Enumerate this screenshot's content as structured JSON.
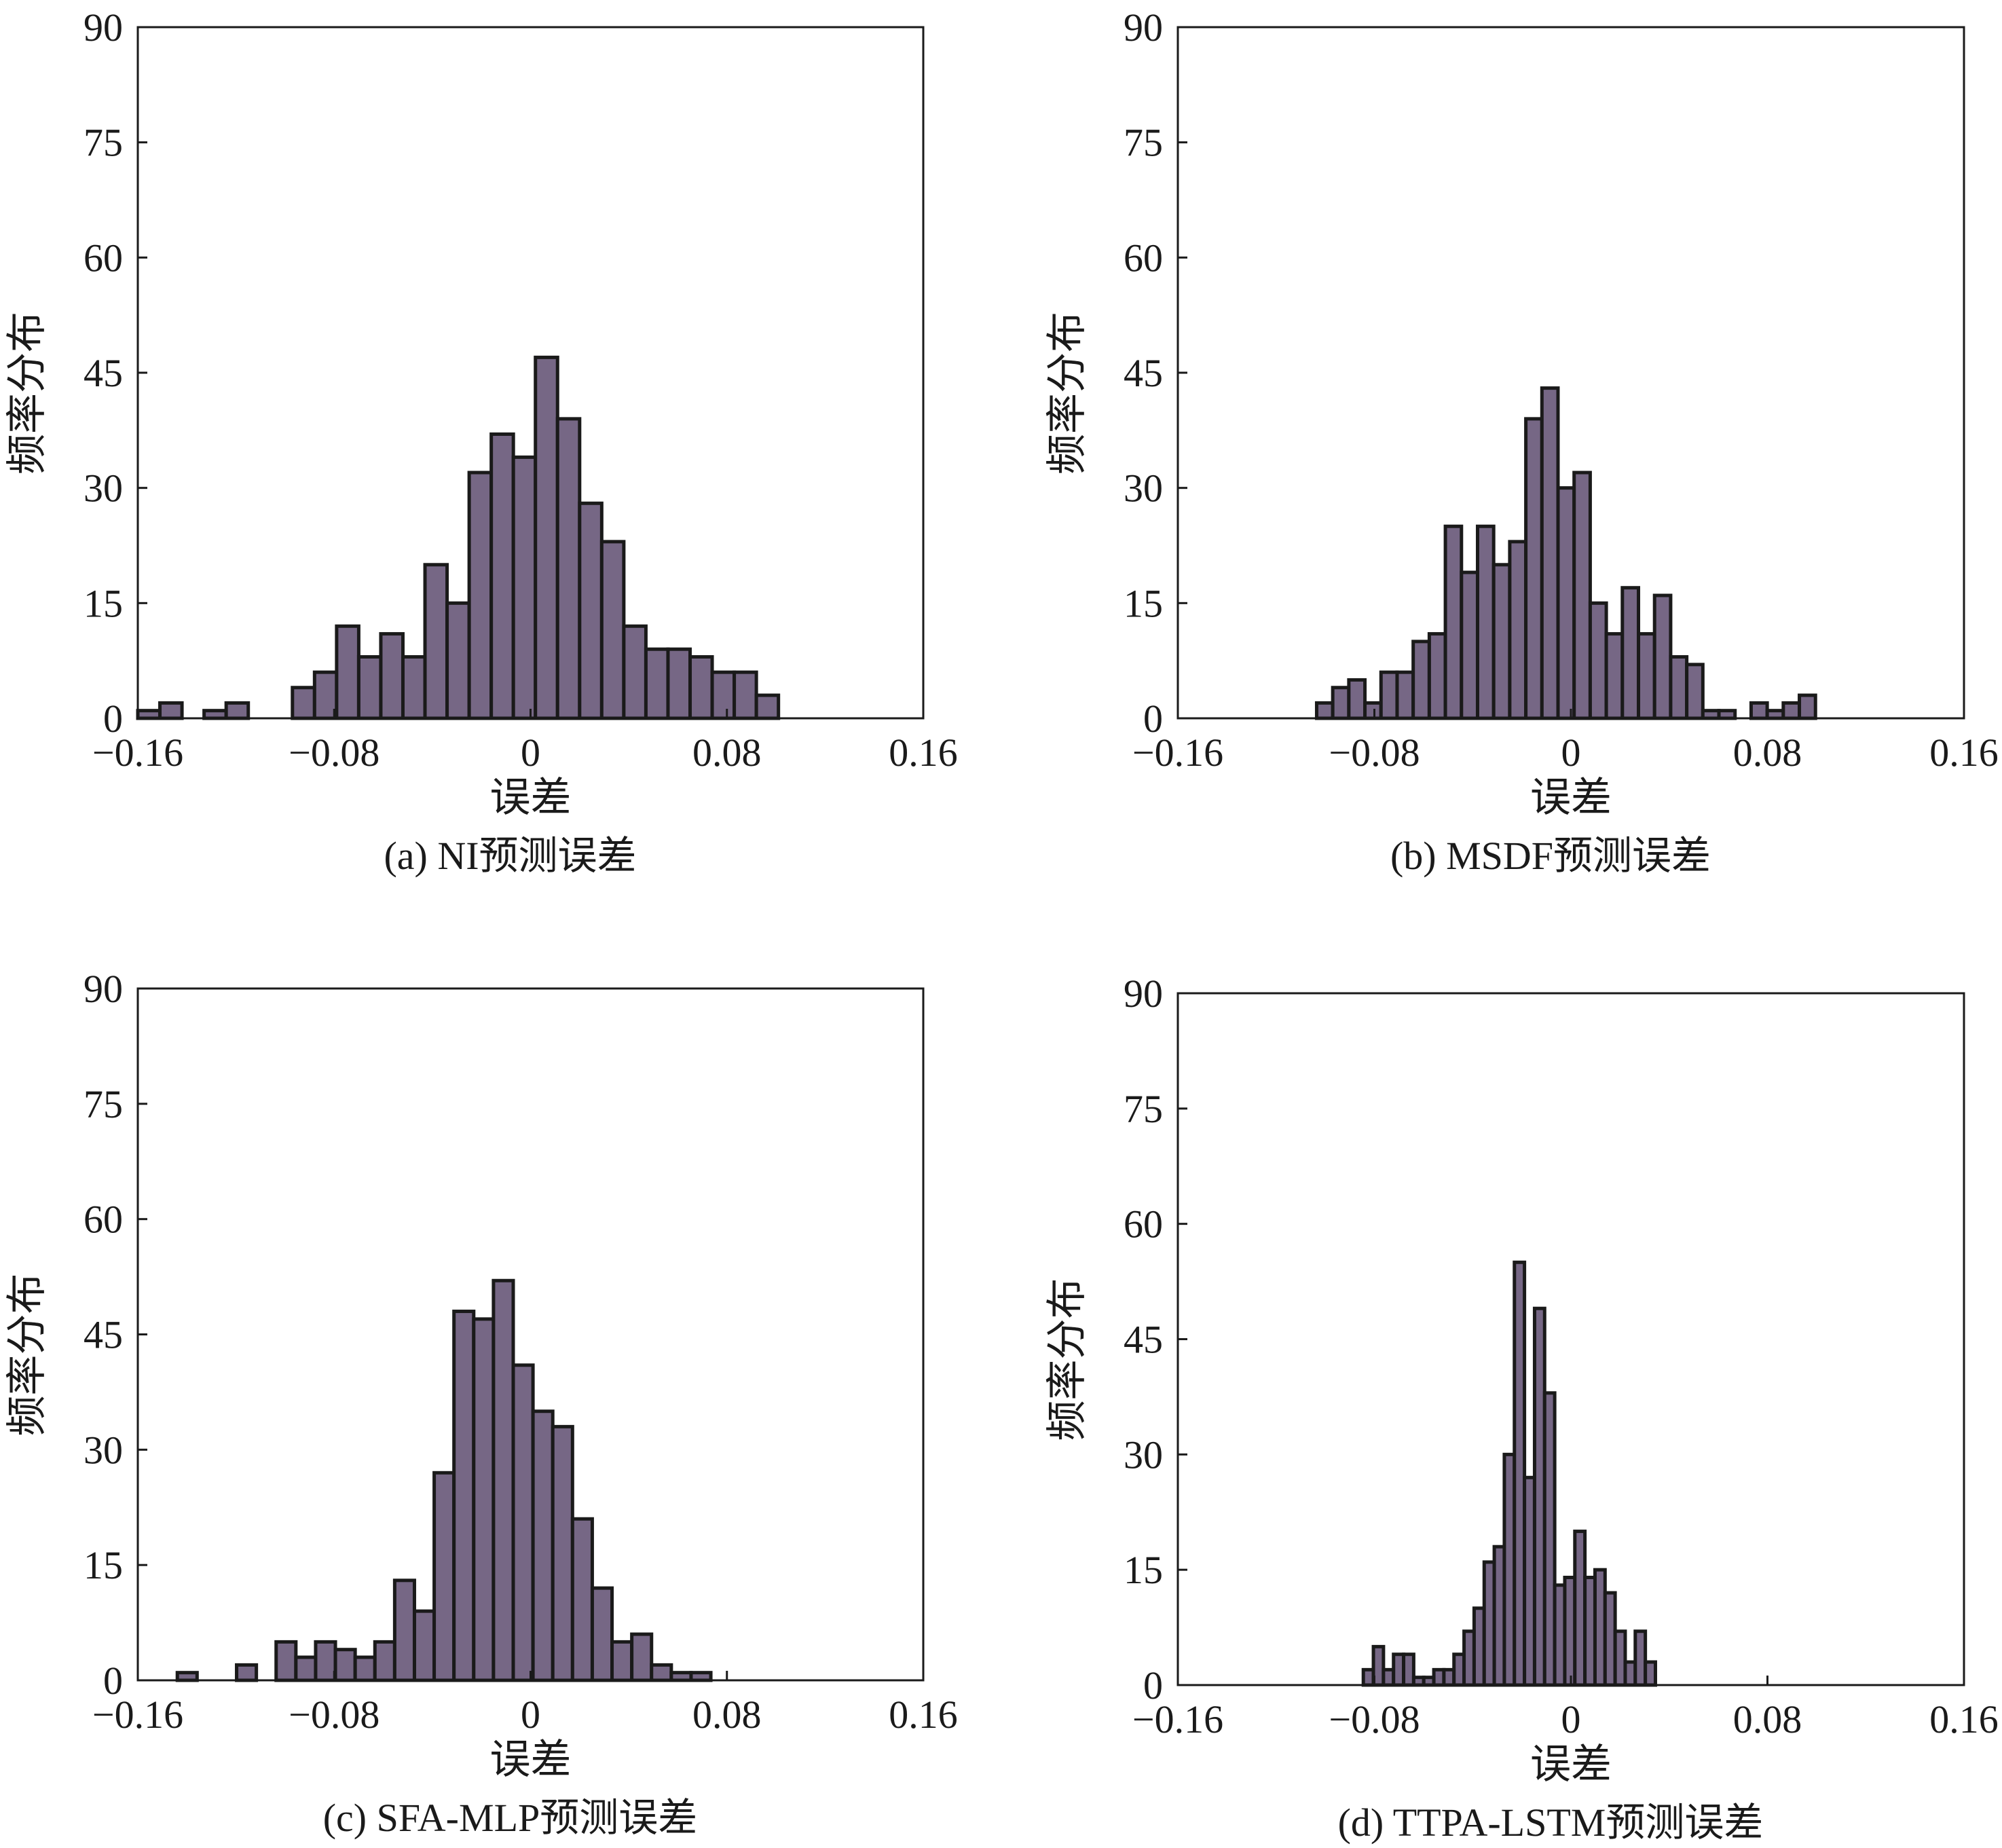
{
  "colors": {
    "bar_fill": "#766785",
    "bar_edge": "#1a1a1a"
  },
  "chart_data": [
    {
      "type": "bar",
      "caption": "(a)  NI预测误差",
      "xlabel": "误差",
      "ylabel": "频率分布",
      "xlim": [
        -0.16,
        0.16
      ],
      "ylim": [
        0,
        90
      ],
      "xticks": [
        "−0.16",
        "−0.08",
        "0",
        "0.08",
        "0.16"
      ],
      "yticks": [
        "0",
        "15",
        "30",
        "45",
        "60",
        "75",
        "90"
      ],
      "bin_start": -0.16,
      "bin_width": 0.009,
      "values": [
        1,
        2,
        0,
        1,
        2,
        0,
        0,
        4,
        6,
        12,
        8,
        11,
        8,
        20,
        15,
        32,
        37,
        34,
        47,
        39,
        28,
        23,
        12,
        9,
        9,
        8,
        6,
        6,
        3
      ]
    },
    {
      "type": "bar",
      "caption": "(b) MSDF预测误差",
      "xlabel": "误差",
      "ylabel": "频率分布",
      "xlim": [
        -0.16,
        0.16
      ],
      "ylim": [
        0,
        90
      ],
      "xticks": [
        "−0.16",
        "−0.08",
        "0",
        "0.08",
        "0.16"
      ],
      "yticks": [
        "0",
        "15",
        "30",
        "45",
        "60",
        "75",
        "90"
      ],
      "bin_start": -0.1035,
      "bin_width": 0.00655,
      "values": [
        2,
        4,
        5,
        2,
        6,
        6,
        10,
        11,
        25,
        19,
        25,
        20,
        23,
        39,
        43,
        30,
        32,
        15,
        11,
        17,
        11,
        16,
        8,
        7,
        1,
        1,
        0,
        2,
        1,
        2,
        3
      ]
    },
    {
      "type": "bar",
      "caption": "(c) SFA-MLP预测误差",
      "xlabel": "误差",
      "ylabel": "频率分布",
      "xlim": [
        -0.16,
        0.16
      ],
      "ylim": [
        0,
        90
      ],
      "xticks": [
        "−0.16",
        "−0.08",
        "0",
        "0.08",
        "0.16"
      ],
      "yticks": [
        "0",
        "15",
        "30",
        "45",
        "60",
        "75",
        "90"
      ],
      "bin_start": -0.16,
      "bin_width": 0.00805,
      "values": [
        0,
        0,
        1,
        0,
        0,
        2,
        0,
        5,
        3,
        5,
        4,
        3,
        5,
        13,
        9,
        27,
        48,
        47,
        52,
        41,
        35,
        33,
        21,
        12,
        5,
        6,
        2,
        1,
        1
      ]
    },
    {
      "type": "bar",
      "caption": "(d) TTPA-LSTM预测误差",
      "xlabel": "误差",
      "ylabel": "频率分布",
      "xlim": [
        -0.16,
        0.16
      ],
      "ylim": [
        0,
        90
      ],
      "xticks": [
        "−0.16",
        "−0.08",
        "0",
        "0.08",
        "0.16"
      ],
      "yticks": [
        "0",
        "15",
        "30",
        "45",
        "60",
        "75",
        "90"
      ],
      "bin_start": -0.0845,
      "bin_width": 0.0041,
      "values": [
        2,
        5,
        2,
        4,
        4,
        1,
        1,
        2,
        2,
        4,
        7,
        10,
        16,
        18,
        30,
        55,
        27,
        49,
        38,
        13,
        14,
        20,
        14,
        15,
        12,
        7,
        3,
        7,
        3
      ]
    }
  ]
}
